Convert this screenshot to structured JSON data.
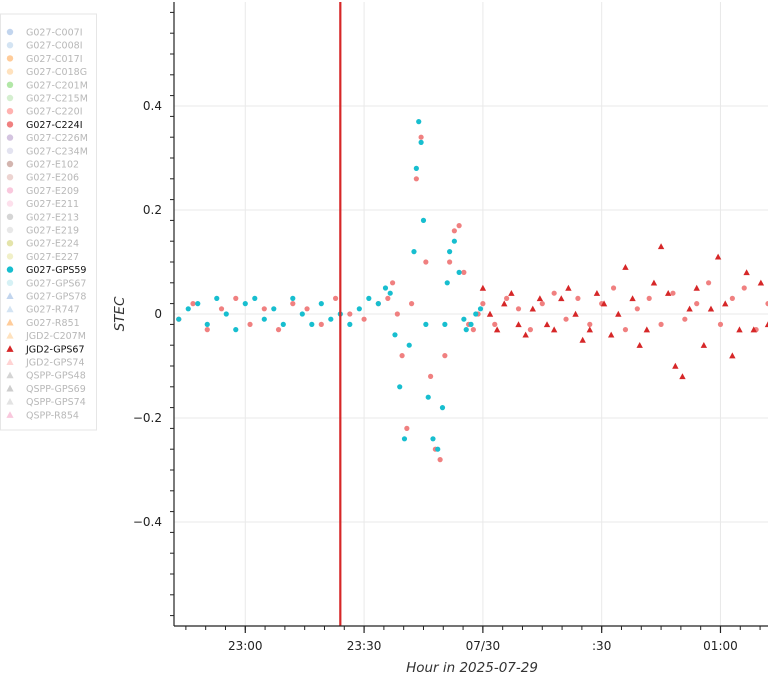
{
  "chart_data": {
    "type": "scatter",
    "title": "",
    "xlabel": "Hour in 2025-07-29",
    "ylabel": "STEC",
    "x_unit": "hours after 23:00 UTC",
    "xlim": [
      -0.3,
      2.2
    ],
    "ylim": [
      -0.6,
      0.6
    ],
    "x_ticks": [
      {
        "value": 0.0,
        "label": "23:00"
      },
      {
        "value": 0.5,
        "label": "23:30"
      },
      {
        "value": 1.0,
        "label": "07/30"
      },
      {
        "value": 1.5,
        "label": ":30"
      },
      {
        "value": 2.0,
        "label": "01:00"
      }
    ],
    "y_ticks": [
      {
        "value": 0.4,
        "label": "0.4"
      },
      {
        "value": 0.2,
        "label": "0.2"
      },
      {
        "value": 0.0,
        "label": "0"
      },
      {
        "value": -0.2,
        "label": "−0.2"
      },
      {
        "value": -0.4,
        "label": "−0.4"
      }
    ],
    "grid": true,
    "event_marker": {
      "x": 0.4,
      "color": "#d62728"
    },
    "legend": {
      "placement": "left",
      "entries": [
        {
          "name": "G027-C007I",
          "marker": "circle",
          "color": "#aec7e8",
          "active": false
        },
        {
          "name": "G027-C008I",
          "marker": "circle",
          "color": "#c6dbef",
          "active": false
        },
        {
          "name": "G027-C017I",
          "marker": "circle",
          "color": "#ffbb78",
          "active": false
        },
        {
          "name": "G027-C018G",
          "marker": "circle",
          "color": "#ffd8a8",
          "active": false
        },
        {
          "name": "G027-C201M",
          "marker": "circle",
          "color": "#98df8a",
          "active": false
        },
        {
          "name": "G027-C215M",
          "marker": "circle",
          "color": "#c7e9c0",
          "active": false
        },
        {
          "name": "G027-C220I",
          "marker": "circle",
          "color": "#ff9896",
          "active": false
        },
        {
          "name": "G027-C224I",
          "marker": "circle",
          "color": "#f08080",
          "active": true
        },
        {
          "name": "G027-C226M",
          "marker": "circle",
          "color": "#c5b0d5",
          "active": false
        },
        {
          "name": "G027-C234M",
          "marker": "circle",
          "color": "#dadaeb",
          "active": false
        },
        {
          "name": "G027-E102",
          "marker": "circle",
          "color": "#c49c94",
          "active": false
        },
        {
          "name": "G027-E206",
          "marker": "circle",
          "color": "#e7c6c1",
          "active": false
        },
        {
          "name": "G027-E209",
          "marker": "circle",
          "color": "#f7b6d2",
          "active": false
        },
        {
          "name": "G027-E211",
          "marker": "circle",
          "color": "#fcd5e5",
          "active": false
        },
        {
          "name": "G027-E213",
          "marker": "circle",
          "color": "#c7c7c7",
          "active": false
        },
        {
          "name": "G027-E219",
          "marker": "circle",
          "color": "#e0e0e0",
          "active": false
        },
        {
          "name": "G027-E224",
          "marker": "circle",
          "color": "#dbdb8d",
          "active": false
        },
        {
          "name": "G027-E227",
          "marker": "circle",
          "color": "#ecebb5",
          "active": false
        },
        {
          "name": "G027-GPS59",
          "marker": "circle",
          "color": "#17becf",
          "active": true
        },
        {
          "name": "G027-GPS67",
          "marker": "circle",
          "color": "#c8ecf2",
          "active": false
        },
        {
          "name": "G027-GPS78",
          "marker": "triangle",
          "color": "#aec7e8",
          "active": false
        },
        {
          "name": "G027-R747",
          "marker": "triangle",
          "color": "#c6dbef",
          "active": false
        },
        {
          "name": "G027-R851",
          "marker": "triangle",
          "color": "#ffbb78",
          "active": false
        },
        {
          "name": "JGD2-C207M",
          "marker": "triangle",
          "color": "#ffd8a8",
          "active": false
        },
        {
          "name": "JGD2-GPS67",
          "marker": "triangle",
          "color": "#d62728",
          "active": true
        },
        {
          "name": "JGD2-GPS74",
          "marker": "triangle",
          "color": "#ffc4c4",
          "active": false
        },
        {
          "name": "QSPP-GPS48",
          "marker": "triangle",
          "color": "#c7c7c7",
          "active": false
        },
        {
          "name": "QSPP-GPS69",
          "marker": "triangle",
          "color": "#bdbdbd",
          "active": false
        },
        {
          "name": "QSPP-GPS74",
          "marker": "triangle",
          "color": "#d9d9d9",
          "active": false
        },
        {
          "name": "QSPP-R854",
          "marker": "triangle",
          "color": "#f7b6d2",
          "active": false
        }
      ]
    },
    "series": [
      {
        "name": "G027-C224I",
        "marker": "circle",
        "color": "#f08080",
        "x": [
          -0.28,
          -0.22,
          -0.16,
          -0.1,
          -0.04,
          0.02,
          0.08,
          0.14,
          0.2,
          0.26,
          0.32,
          0.38,
          0.44,
          0.5,
          0.56,
          0.6,
          0.62,
          0.64,
          0.66,
          0.68,
          0.7,
          0.72,
          0.74,
          0.76,
          0.78,
          0.8,
          0.82,
          0.84,
          0.86,
          0.88,
          0.9,
          0.92,
          0.94,
          0.96,
          0.98,
          1.0,
          1.05,
          1.1,
          1.15,
          1.2,
          1.25,
          1.3,
          1.35,
          1.4,
          1.45,
          1.5,
          1.55,
          1.6,
          1.65,
          1.7,
          1.75,
          1.8,
          1.85,
          1.9,
          1.95,
          2.0,
          2.05,
          2.1,
          2.15,
          2.2
        ],
        "y": [
          -0.01,
          0.02,
          -0.03,
          0.01,
          0.03,
          -0.02,
          0.01,
          -0.03,
          0.02,
          0.01,
          -0.02,
          0.03,
          0.0,
          -0.01,
          0.02,
          0.03,
          0.06,
          0.0,
          -0.08,
          -0.22,
          0.02,
          0.26,
          0.34,
          0.1,
          -0.12,
          -0.26,
          -0.28,
          -0.08,
          0.1,
          0.16,
          0.17,
          0.08,
          -0.02,
          -0.03,
          0.0,
          0.02,
          -0.02,
          0.03,
          0.01,
          -0.03,
          0.02,
          0.04,
          -0.01,
          0.03,
          -0.02,
          0.02,
          0.05,
          -0.03,
          0.01,
          0.03,
          -0.02,
          0.04,
          -0.01,
          0.02,
          0.06,
          -0.02,
          0.03,
          0.05,
          -0.03,
          0.02
        ]
      },
      {
        "name": "G027-GPS59",
        "marker": "circle",
        "color": "#17becf",
        "x": [
          -0.28,
          -0.24,
          -0.2,
          -0.16,
          -0.12,
          -0.08,
          -0.04,
          0.0,
          0.04,
          0.08,
          0.12,
          0.16,
          0.2,
          0.24,
          0.28,
          0.32,
          0.36,
          0.4,
          0.44,
          0.48,
          0.52,
          0.56,
          0.59,
          0.61,
          0.63,
          0.65,
          0.67,
          0.69,
          0.71,
          0.72,
          0.73,
          0.74,
          0.75,
          0.76,
          0.77,
          0.79,
          0.81,
          0.83,
          0.84,
          0.85,
          0.86,
          0.88,
          0.9,
          0.92,
          0.93,
          0.95,
          0.97,
          0.99
        ],
        "y": [
          -0.01,
          0.01,
          0.02,
          -0.02,
          0.03,
          0.0,
          -0.03,
          0.02,
          0.03,
          -0.01,
          0.01,
          -0.02,
          0.03,
          0.0,
          -0.02,
          0.02,
          -0.01,
          0.0,
          -0.02,
          0.01,
          0.03,
          0.02,
          0.05,
          0.04,
          -0.04,
          -0.14,
          -0.24,
          -0.06,
          0.12,
          0.28,
          0.37,
          0.33,
          0.18,
          -0.02,
          -0.16,
          -0.24,
          -0.26,
          -0.18,
          -0.02,
          0.06,
          0.12,
          0.14,
          0.08,
          -0.01,
          -0.03,
          -0.02,
          0.0,
          0.01
        ]
      },
      {
        "name": "JGD2-GPS67",
        "marker": "triangle",
        "color": "#d62728",
        "x": [
          1.0,
          1.03,
          1.06,
          1.09,
          1.12,
          1.15,
          1.18,
          1.21,
          1.24,
          1.27,
          1.3,
          1.33,
          1.36,
          1.39,
          1.42,
          1.45,
          1.48,
          1.51,
          1.54,
          1.57,
          1.6,
          1.63,
          1.66,
          1.69,
          1.72,
          1.75,
          1.78,
          1.81,
          1.84,
          1.87,
          1.9,
          1.93,
          1.96,
          1.99,
          2.02,
          2.05,
          2.08,
          2.11,
          2.14,
          2.17,
          2.2
        ],
        "y": [
          0.05,
          0.0,
          -0.03,
          0.02,
          0.04,
          -0.02,
          -0.04,
          0.01,
          0.03,
          -0.02,
          -0.03,
          0.03,
          0.05,
          0.0,
          -0.05,
          -0.03,
          0.04,
          0.02,
          -0.04,
          0.0,
          0.09,
          0.03,
          -0.06,
          -0.03,
          0.06,
          0.13,
          0.04,
          -0.1,
          -0.12,
          0.01,
          0.05,
          -0.06,
          0.01,
          0.11,
          0.02,
          -0.08,
          -0.03,
          0.08,
          -0.03,
          0.06,
          -0.02
        ]
      }
    ]
  }
}
